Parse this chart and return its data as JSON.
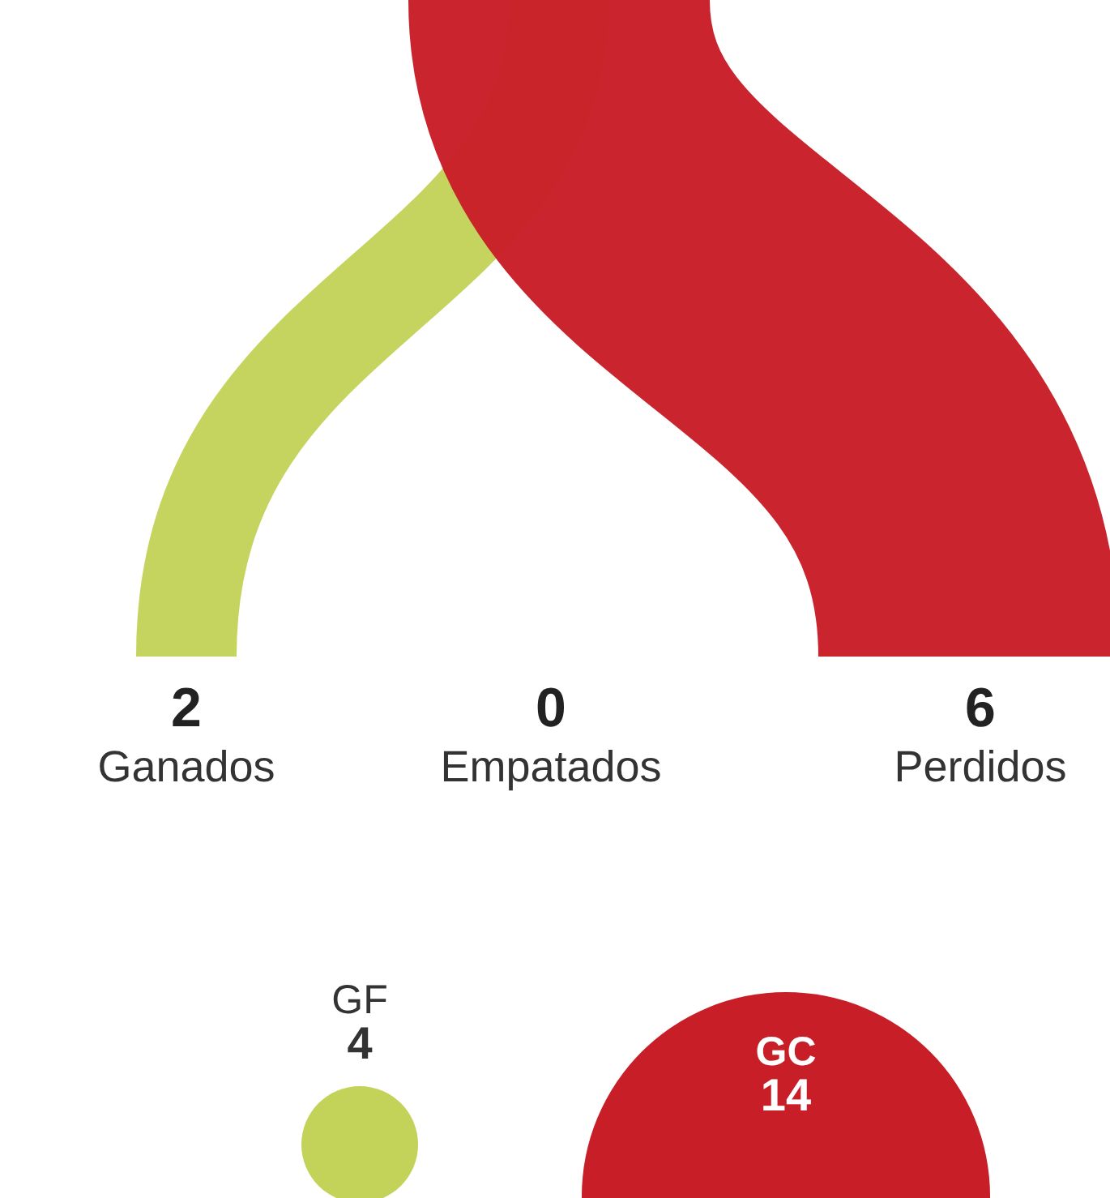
{
  "chart_data": [
    {
      "type": "other",
      "categories": [
        "Ganados",
        "Empatados",
        "Perdidos"
      ],
      "values": [
        2,
        0,
        6
      ],
      "colors": [
        "#c3d35a",
        null,
        "#c81e27"
      ],
      "data_labels": true
    },
    {
      "type": "other",
      "categories": [
        "GF",
        "GC"
      ],
      "values": [
        4,
        14
      ],
      "colors": [
        "#c3d35a",
        "#c81e27"
      ],
      "data_labels": true
    }
  ]
}
